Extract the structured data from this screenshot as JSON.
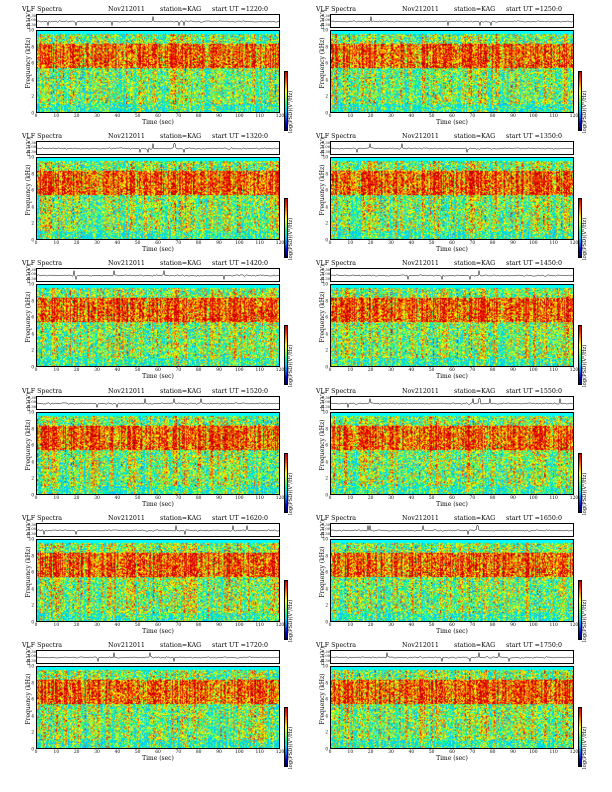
{
  "chart_data": [
    {
      "type": "heatmap",
      "header": {
        "title": "VLF Spectra",
        "date": "Nov212011",
        "station": "station=KAG",
        "start": "start  UT  =1220:0"
      },
      "ts_ylabel": "ch1(V)",
      "ts_ticks": [
        "0.30",
        "0.00",
        "-0.30"
      ],
      "ylabel": "Frequency (kHz)",
      "yticks": [
        "10",
        "8",
        "6",
        "4",
        "2",
        "0"
      ],
      "xlabel": "Time (sec)",
      "xticks": [
        "0",
        "10",
        "20",
        "30",
        "40",
        "50",
        "60",
        "70",
        "80",
        "90",
        "100",
        "110",
        "120"
      ],
      "colorbar_label": "log(PSD)(V²/Hz)",
      "x_range": [
        0,
        120
      ],
      "y_range": [
        0,
        10
      ]
    },
    {
      "type": "heatmap",
      "header": {
        "title": "VLF Spectra",
        "date": "Nov212011",
        "station": "station=KAG",
        "start": "start  UT  =1250:0"
      },
      "ts_ylabel": "ch1(V)",
      "ts_ticks": [
        "0.30",
        "0.00",
        "-0.30"
      ],
      "ylabel": "Frequency (kHz)",
      "yticks": [
        "10",
        "8",
        "6",
        "4",
        "2",
        "0"
      ],
      "xlabel": "Time (sec)",
      "xticks": [
        "0",
        "10",
        "20",
        "30",
        "40",
        "50",
        "60",
        "70",
        "80",
        "90",
        "100",
        "110",
        "120"
      ],
      "colorbar_label": "log(PSD)(V²/Hz)",
      "x_range": [
        0,
        120
      ],
      "y_range": [
        0,
        10
      ]
    },
    {
      "type": "heatmap",
      "header": {
        "title": "VLF Spectra",
        "date": "Nov212011",
        "station": "station=KAG",
        "start": "start  UT  =1320:0"
      },
      "ts_ylabel": "ch1(V)",
      "ts_ticks": [
        "0.30",
        "0.00",
        "-0.30"
      ],
      "ylabel": "Frequency (kHz)",
      "yticks": [
        "10",
        "8",
        "6",
        "4",
        "2",
        "0"
      ],
      "xlabel": "Time (sec)",
      "xticks": [
        "0",
        "10",
        "20",
        "30",
        "40",
        "50",
        "60",
        "70",
        "80",
        "90",
        "100",
        "110",
        "120"
      ],
      "colorbar_label": "log(PSD)(V²/Hz)",
      "x_range": [
        0,
        120
      ],
      "y_range": [
        0,
        10
      ]
    },
    {
      "type": "heatmap",
      "header": {
        "title": "VLF Spectra",
        "date": "Nov212011",
        "station": "station=KAG",
        "start": "start  UT  =1350:0"
      },
      "ts_ylabel": "ch1(V)",
      "ts_ticks": [
        "0.30",
        "0.00",
        "-0.30"
      ],
      "ylabel": "Frequency (kHz)",
      "yticks": [
        "10",
        "8",
        "6",
        "4",
        "2",
        "0"
      ],
      "xlabel": "Time (sec)",
      "xticks": [
        "0",
        "10",
        "20",
        "30",
        "40",
        "50",
        "60",
        "70",
        "80",
        "90",
        "100",
        "110",
        "120"
      ],
      "colorbar_label": "log(PSD)(V²/Hz)",
      "x_range": [
        0,
        120
      ],
      "y_range": [
        0,
        10
      ]
    },
    {
      "type": "heatmap",
      "header": {
        "title": "VLF Spectra",
        "date": "Nov212011",
        "station": "station=KAG",
        "start": "start  UT  =1420:0"
      },
      "ts_ylabel": "ch1(V)",
      "ts_ticks": [
        "0.30",
        "0.00",
        "-0.30"
      ],
      "ylabel": "Frequency (kHz)",
      "yticks": [
        "10",
        "8",
        "6",
        "4",
        "2",
        "0"
      ],
      "xlabel": "Time (sec)",
      "xticks": [
        "0",
        "10",
        "20",
        "30",
        "40",
        "50",
        "60",
        "70",
        "80",
        "90",
        "100",
        "110",
        "120"
      ],
      "colorbar_label": "log(PSD)(V²/Hz)",
      "x_range": [
        0,
        120
      ],
      "y_range": [
        0,
        10
      ]
    },
    {
      "type": "heatmap",
      "header": {
        "title": "VLF Spectra",
        "date": "Nov212011",
        "station": "station=KAG",
        "start": "start  UT  =1450:0"
      },
      "ts_ylabel": "ch1(V)",
      "ts_ticks": [
        "0.30",
        "0.00",
        "-0.30"
      ],
      "ylabel": "Frequency (kHz)",
      "yticks": [
        "10",
        "8",
        "6",
        "4",
        "2",
        "0"
      ],
      "xlabel": "Time (sec)",
      "xticks": [
        "0",
        "10",
        "20",
        "30",
        "40",
        "50",
        "60",
        "70",
        "80",
        "90",
        "100",
        "110",
        "120"
      ],
      "colorbar_label": "log(PSD)(V²/Hz)",
      "x_range": [
        0,
        120
      ],
      "y_range": [
        0,
        10
      ]
    },
    {
      "type": "heatmap",
      "header": {
        "title": "VLF Spectra",
        "date": "Nov212011",
        "station": "station=KAG",
        "start": "start  UT  =1520:0"
      },
      "ts_ylabel": "ch1(V)",
      "ts_ticks": [
        "0.30",
        "0.00",
        "-0.30"
      ],
      "ylabel": "Frequency (kHz)",
      "yticks": [
        "10",
        "8",
        "6",
        "4",
        "2",
        "0"
      ],
      "xlabel": "Time (sec)",
      "xticks": [
        "0",
        "10",
        "20",
        "30",
        "40",
        "50",
        "60",
        "70",
        "80",
        "90",
        "100",
        "110",
        "120"
      ],
      "colorbar_label": "log(PSD)(V²/Hz)",
      "x_range": [
        0,
        120
      ],
      "y_range": [
        0,
        10
      ]
    },
    {
      "type": "heatmap",
      "header": {
        "title": "VLF Spectra",
        "date": "Nov212011",
        "station": "station=KAG",
        "start": "start  UT  =1550:0"
      },
      "ts_ylabel": "ch1(V)",
      "ts_ticks": [
        "0.30",
        "0.00",
        "-0.30"
      ],
      "ylabel": "Frequency (kHz)",
      "yticks": [
        "10",
        "8",
        "6",
        "4",
        "2",
        "0"
      ],
      "xlabel": "Time (sec)",
      "xticks": [
        "0",
        "10",
        "20",
        "30",
        "40",
        "50",
        "60",
        "70",
        "80",
        "90",
        "100",
        "110",
        "120"
      ],
      "colorbar_label": "log(PSD)(V²/Hz)",
      "x_range": [
        0,
        120
      ],
      "y_range": [
        0,
        10
      ]
    },
    {
      "type": "heatmap",
      "header": {
        "title": "VLF Spectra",
        "date": "Nov212011",
        "station": "station=KAG",
        "start": "start  UT  =1620:0"
      },
      "ts_ylabel": "ch1(V)",
      "ts_ticks": [
        "0.30",
        "0.00",
        "-0.30"
      ],
      "ylabel": "Frequency (kHz)",
      "yticks": [
        "10",
        "8",
        "6",
        "4",
        "2",
        "0"
      ],
      "xlabel": "Time (sec)",
      "xticks": [
        "0",
        "10",
        "20",
        "30",
        "40",
        "50",
        "60",
        "70",
        "80",
        "90",
        "100",
        "110",
        "120"
      ],
      "colorbar_label": "log(PSD)(V²/Hz)",
      "x_range": [
        0,
        120
      ],
      "y_range": [
        0,
        10
      ]
    },
    {
      "type": "heatmap",
      "header": {
        "title": "VLF Spectra",
        "date": "Nov212011",
        "station": "station=KAG",
        "start": "start  UT  =1650:0"
      },
      "ts_ylabel": "ch1(V)",
      "ts_ticks": [
        "0.30",
        "0.00",
        "-0.30"
      ],
      "ylabel": "Frequency (kHz)",
      "yticks": [
        "10",
        "8",
        "6",
        "4",
        "2",
        "0"
      ],
      "xlabel": "Time (sec)",
      "xticks": [
        "0",
        "10",
        "20",
        "30",
        "40",
        "50",
        "60",
        "70",
        "80",
        "90",
        "100",
        "110",
        "120"
      ],
      "colorbar_label": "log(PSD)(V²/Hz)",
      "x_range": [
        0,
        120
      ],
      "y_range": [
        0,
        10
      ]
    },
    {
      "type": "heatmap",
      "header": {
        "title": "VLF Spectra",
        "date": "Nov212011",
        "station": "station=KAG",
        "start": "start  UT  =1720:0"
      },
      "ts_ylabel": "ch1(V)",
      "ts_ticks": [
        "0.30",
        "0.00",
        "-0.30"
      ],
      "ylabel": "Frequency (kHz)",
      "yticks": [
        "10",
        "8",
        "6",
        "4",
        "2",
        "0"
      ],
      "xlabel": "Time (sec)",
      "xticks": [
        "0",
        "10",
        "20",
        "30",
        "40",
        "50",
        "60",
        "70",
        "80",
        "90",
        "100",
        "110",
        "120"
      ],
      "colorbar_label": "log(PSD)(V²/Hz)",
      "x_range": [
        0,
        120
      ],
      "y_range": [
        0,
        10
      ]
    },
    {
      "type": "heatmap",
      "header": {
        "title": "VLF Spectra",
        "date": "Nov212011",
        "station": "station=KAG",
        "start": "start  UT  =1750:0"
      },
      "ts_ylabel": "ch1(V)",
      "ts_ticks": [
        "0.30",
        "0.00",
        "-0.30"
      ],
      "ylabel": "Frequency (kHz)",
      "yticks": [
        "10",
        "8",
        "6",
        "4",
        "2",
        "0"
      ],
      "xlabel": "Time (sec)",
      "xticks": [
        "0",
        "10",
        "20",
        "30",
        "40",
        "50",
        "60",
        "70",
        "80",
        "90",
        "100",
        "110",
        "120"
      ],
      "colorbar_label": "log(PSD)(V²/Hz)",
      "x_range": [
        0,
        120
      ],
      "y_range": [
        0,
        10
      ]
    }
  ]
}
